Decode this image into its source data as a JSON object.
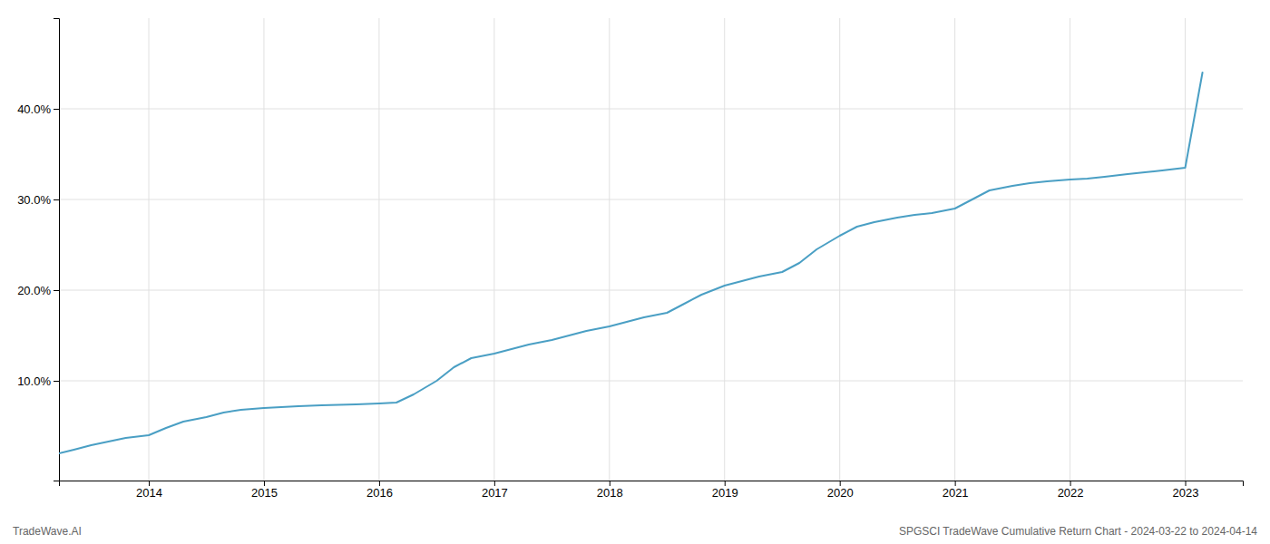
{
  "chart_data": {
    "type": "line",
    "x": [
      2013.22,
      2013.35,
      2013.5,
      2013.65,
      2013.8,
      2014.0,
      2014.15,
      2014.3,
      2014.5,
      2014.65,
      2014.8,
      2015.0,
      2015.15,
      2015.3,
      2015.5,
      2015.65,
      2015.8,
      2016.0,
      2016.15,
      2016.3,
      2016.5,
      2016.65,
      2016.8,
      2017.0,
      2017.15,
      2017.3,
      2017.5,
      2017.65,
      2017.8,
      2018.0,
      2018.15,
      2018.3,
      2018.5,
      2018.65,
      2018.8,
      2019.0,
      2019.15,
      2019.3,
      2019.5,
      2019.65,
      2019.8,
      2020.0,
      2020.15,
      2020.3,
      2020.5,
      2020.65,
      2020.8,
      2021.0,
      2021.15,
      2021.3,
      2021.5,
      2021.65,
      2021.8,
      2022.0,
      2022.15,
      2022.3,
      2022.5,
      2022.65,
      2022.8,
      2023.0,
      2023.15
    ],
    "values": [
      2.0,
      2.4,
      2.9,
      3.3,
      3.7,
      4.0,
      4.8,
      5.5,
      6.0,
      6.5,
      6.8,
      7.0,
      7.1,
      7.2,
      7.3,
      7.35,
      7.4,
      7.5,
      7.6,
      8.5,
      10.0,
      11.5,
      12.5,
      13.0,
      13.5,
      14.0,
      14.5,
      15.0,
      15.5,
      16.0,
      16.5,
      17.0,
      17.5,
      18.5,
      19.5,
      20.5,
      21.0,
      21.5,
      22.0,
      23.0,
      24.5,
      26.0,
      27.0,
      27.5,
      28.0,
      28.3,
      28.5,
      29.0,
      30.0,
      31.0,
      31.5,
      31.8,
      32.0,
      32.2,
      32.3,
      32.5,
      32.8,
      33.0,
      33.2,
      33.5,
      44.0
    ],
    "color": "#4a9fc4",
    "xlim": [
      2013.22,
      2023.5
    ],
    "xticks": [
      2014,
      2015,
      2016,
      2017,
      2018,
      2019,
      2020,
      2021,
      2022,
      2023
    ],
    "ylim": [
      -1,
      50
    ],
    "yticks": [
      {
        "value": 10.0,
        "label": "10.0%"
      },
      {
        "value": 20.0,
        "label": "20.0%"
      },
      {
        "value": 30.0,
        "label": "30.0%"
      },
      {
        "value": 40.0,
        "label": "40.0%"
      }
    ],
    "grid": true,
    "annotations": [
      "TradeWave.AI",
      "SPGSCI TradeWave Cumulative Return Chart - 2024-03-22 to 2024-04-14"
    ]
  }
}
